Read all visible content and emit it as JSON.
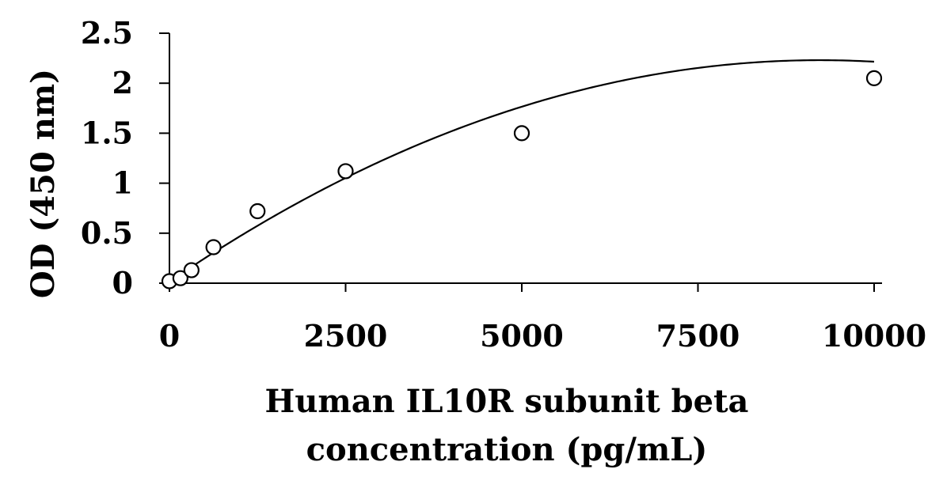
{
  "chart_data": {
    "type": "scatter",
    "xlabel_lines": [
      "Human IL10R subunit beta",
      "concentration (pg/mL)"
    ],
    "ylabel": "OD (450 nm)",
    "xlim": [
      0,
      10000
    ],
    "ylim": [
      0,
      2.5
    ],
    "x_ticks": [
      0,
      2500,
      5000,
      7500,
      10000
    ],
    "x_tick_labels": [
      "0",
      "2500",
      "5000",
      "7500",
      "10000"
    ],
    "y_ticks": [
      0,
      0.5,
      1,
      1.5,
      2,
      2.5
    ],
    "y_tick_labels": [
      "0",
      "0.5",
      "1",
      "1.5",
      "2",
      "2.5"
    ],
    "grid": false,
    "legend": "none",
    "series": [
      {
        "points": [
          {
            "x": 0,
            "y": 0.02
          },
          {
            "x": 156,
            "y": 0.05
          },
          {
            "x": 313,
            "y": 0.13
          },
          {
            "x": 625,
            "y": 0.36
          },
          {
            "x": 1250,
            "y": 0.72
          },
          {
            "x": 2500,
            "y": 1.12
          },
          {
            "x": 5000,
            "y": 1.5
          },
          {
            "x": 10000,
            "y": 2.05
          }
        ],
        "marker": "open-circle",
        "color": "#000000"
      }
    ],
    "fit_curve": {
      "model": "polynomial",
      "coefficients": [
        0.015,
        0.00048,
        -2.6e-08
      ]
    }
  }
}
